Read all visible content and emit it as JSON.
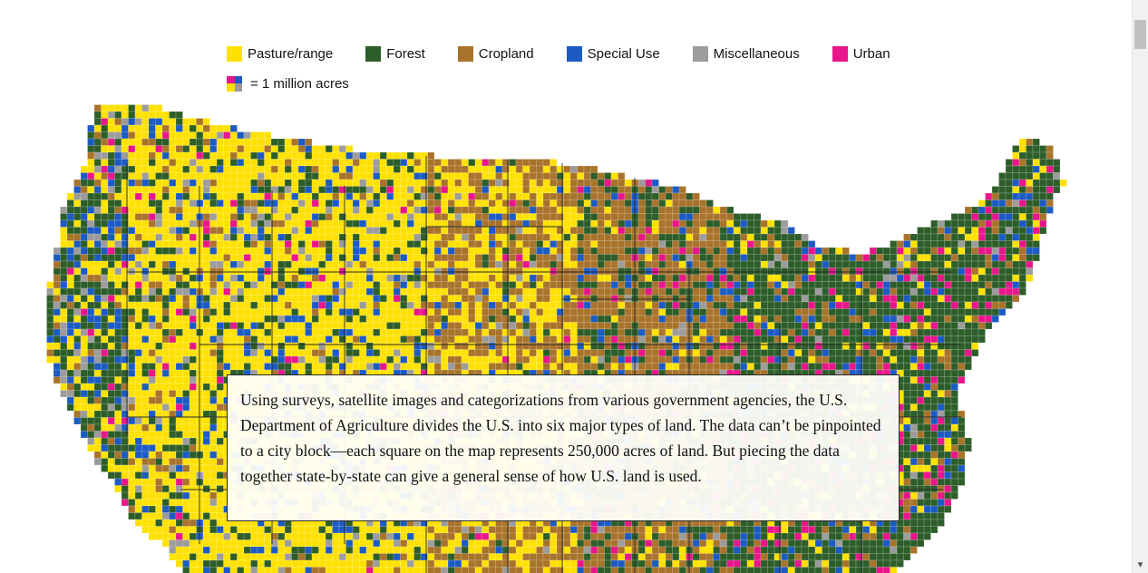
{
  "legend": {
    "items": [
      {
        "label": "Pasture/range",
        "color": "#ffe100",
        "icon": "pasture-swatch-icon"
      },
      {
        "label": "Forest",
        "color": "#2d5e2a",
        "icon": "forest-swatch-icon"
      },
      {
        "label": "Cropland",
        "color": "#a8732b",
        "icon": "cropland-swatch-icon"
      },
      {
        "label": "Special Use",
        "color": "#1c5bc4",
        "icon": "special-use-swatch-icon"
      },
      {
        "label": "Miscellaneous",
        "color": "#9c9c9c",
        "icon": "miscellaneous-swatch-icon"
      },
      {
        "label": "Urban",
        "color": "#e8168a",
        "icon": "urban-swatch-icon"
      }
    ],
    "key_label": "= 1 million acres"
  },
  "caption": {
    "text": "Using surveys, satellite images and categorizations from various government agencies, the U.S. Department of Agriculture divides the U.S. into six major types of land. The data can’t be pinpointed to a city block—each square on the map represents 250,000 acres of land. But piecing the data together state-by-state can give a general sense of how U.S. land is used."
  },
  "map": {
    "region": "Contiguous United States",
    "unit": "250,000 acres per square"
  },
  "scrollbar": {
    "down_arrow": "▾"
  }
}
